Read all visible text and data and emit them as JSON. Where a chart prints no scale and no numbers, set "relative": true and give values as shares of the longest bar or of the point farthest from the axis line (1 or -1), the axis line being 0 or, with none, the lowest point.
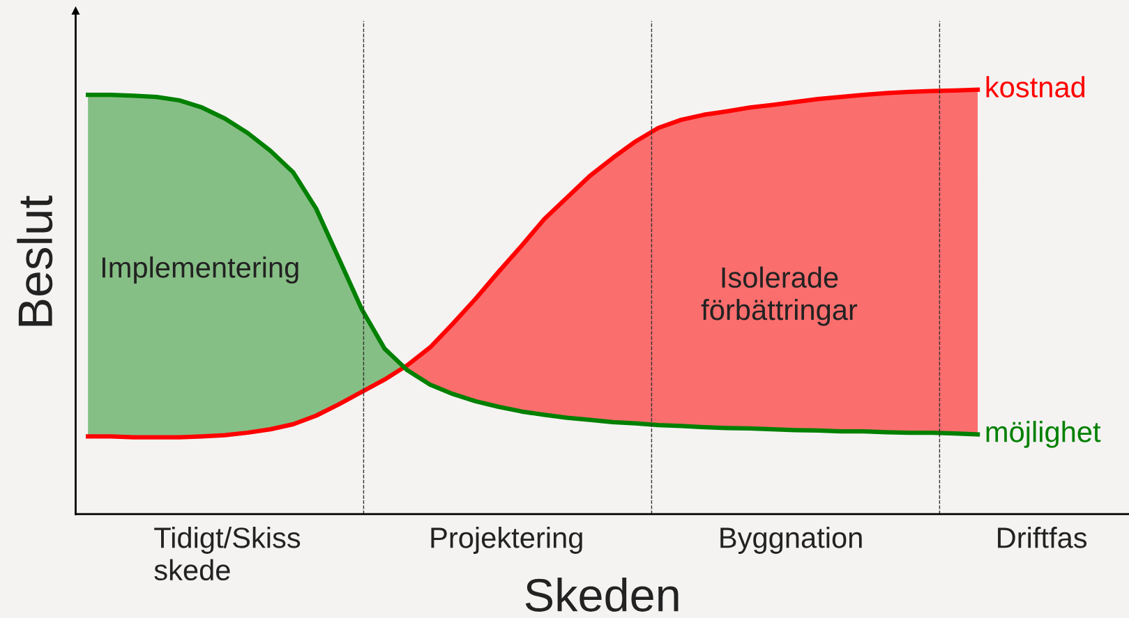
{
  "chart_data": {
    "type": "line",
    "relative": true,
    "xlabel": "Skeden",
    "ylabel": "Beslut",
    "categories": [
      null,
      null,
      null,
      null,
      null,
      null,
      null,
      null,
      null,
      null,
      null,
      null,
      null,
      null,
      null,
      null,
      null,
      null,
      null,
      null,
      null,
      null,
      null,
      null,
      null,
      null,
      null,
      null,
      null,
      null,
      null,
      null,
      null,
      null,
      null,
      null,
      null,
      null,
      null,
      null
    ],
    "series": [
      {
        "name": "kostnad",
        "color": "#ff0000",
        "values": [
          0.183,
          0.183,
          0.181,
          0.181,
          0.181,
          0.183,
          0.186,
          0.192,
          0.2,
          0.212,
          0.232,
          0.259,
          0.288,
          0.317,
          0.351,
          0.393,
          0.449,
          0.508,
          0.571,
          0.632,
          0.695,
          0.746,
          0.797,
          0.839,
          0.878,
          0.91,
          0.929,
          0.941,
          0.949,
          0.958,
          0.964,
          0.971,
          0.978,
          0.983,
          0.988,
          0.992,
          0.995,
          0.997,
          0.998,
          1.0
        ]
      },
      {
        "name": "möjlighet",
        "color": "#008000",
        "values": [
          0.988,
          0.988,
          0.986,
          0.983,
          0.975,
          0.958,
          0.932,
          0.898,
          0.856,
          0.805,
          0.72,
          0.602,
          0.483,
          0.39,
          0.339,
          0.305,
          0.283,
          0.266,
          0.253,
          0.242,
          0.234,
          0.227,
          0.222,
          0.217,
          0.214,
          0.21,
          0.208,
          0.205,
          0.203,
          0.202,
          0.2,
          0.198,
          0.197,
          0.195,
          0.195,
          0.193,
          0.192,
          0.192,
          0.19,
          0.188
        ]
      }
    ],
    "annotations": [
      "Tidigt/Skiss\nskede",
      "Projektering",
      "Byggnation",
      "Driftfas",
      "Implementering",
      "Isolerade\nförbättringar"
    ],
    "grid": false,
    "legend": false
  }
}
